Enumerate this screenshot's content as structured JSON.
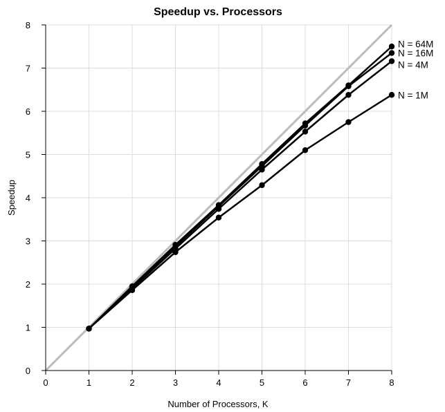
{
  "chart_data": {
    "type": "line",
    "title": "Speedup vs. Processors",
    "xlabel": "Number of Processors, K",
    "ylabel": "Speedup",
    "xlim": [
      0,
      8
    ],
    "ylim": [
      0,
      8
    ],
    "xticks": [
      "0",
      "1",
      "2",
      "3",
      "4",
      "5",
      "6",
      "7",
      "8"
    ],
    "yticks": [
      "0",
      "1",
      "2",
      "3",
      "4",
      "5",
      "6",
      "7",
      "8"
    ],
    "grid": true,
    "legend": "inline-right",
    "reference_line": {
      "x": [
        0,
        8
      ],
      "y": [
        0,
        8
      ],
      "color": "#bbbbbb"
    },
    "x": [
      1,
      2,
      3,
      4,
      5,
      6,
      7,
      8
    ],
    "series": [
      {
        "name": "N = 64M",
        "values": [
          0.97,
          1.95,
          2.91,
          3.83,
          4.78,
          5.72,
          6.6,
          7.5
        ]
      },
      {
        "name": "N = 16M",
        "values": [
          0.97,
          1.93,
          2.87,
          3.8,
          4.73,
          5.67,
          6.58,
          7.35
        ]
      },
      {
        "name": "N = 4M",
        "values": [
          0.97,
          1.9,
          2.82,
          3.74,
          4.65,
          5.53,
          6.38,
          7.16
        ]
      },
      {
        "name": "N = 1M",
        "values": [
          0.97,
          1.86,
          2.74,
          3.54,
          4.29,
          5.1,
          5.75,
          6.38
        ]
      }
    ],
    "colors": {
      "series": "#000000",
      "reference": "#bbbbbb",
      "grid": "#dedede"
    }
  }
}
